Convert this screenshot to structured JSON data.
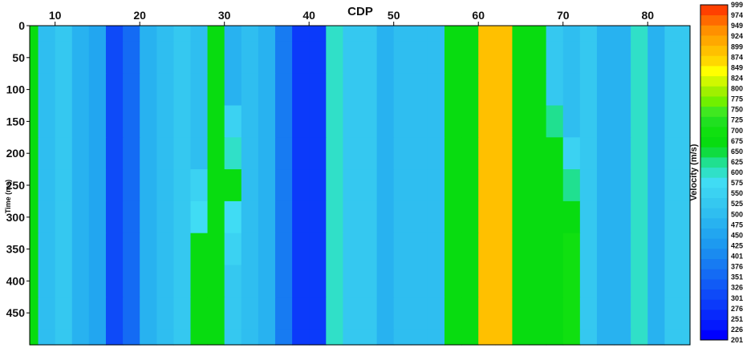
{
  "chart_data": {
    "type": "heatmap",
    "title": "",
    "xlabel": "CDP",
    "ylabel": "Time (ms)",
    "colorbar_label": "Velocity (m/s)",
    "xlim": [
      7,
      85
    ],
    "ylim": [
      0,
      500
    ],
    "y_inverted": true,
    "x_ticks": [
      10,
      20,
      30,
      40,
      50,
      60,
      70,
      80
    ],
    "y_ticks": [
      0,
      50,
      100,
      150,
      200,
      250,
      300,
      350,
      400,
      450
    ],
    "colorbar_levels": [
      201,
      226,
      251,
      276,
      301,
      326,
      351,
      376,
      401,
      425,
      450,
      475,
      500,
      525,
      550,
      575,
      600,
      625,
      650,
      675,
      700,
      725,
      750,
      775,
      800,
      824,
      849,
      874,
      899,
      924,
      949,
      974,
      999
    ],
    "colorbar_colors": [
      "#0000ff",
      "#0419fd",
      "#0829fb",
      "#0b3afa",
      "#0e4af8",
      "#115bf6",
      "#146bf4",
      "#177bf2",
      "#1a8bf0",
      "#1d9af0",
      "#22a6f0",
      "#28b2f0",
      "#2fbef0",
      "#35c8f0",
      "#3bd2f2",
      "#40dcf4",
      "#30e0c8",
      "#20e090",
      "#10dc40",
      "#08dc10",
      "#10e010",
      "#20e020",
      "#40e820",
      "#70f000",
      "#a0f000",
      "#d0f800",
      "#ffff00",
      "#ffd800",
      "#ffc000",
      "#ffa800",
      "#ff9000",
      "#ff6a00",
      "#ff4000"
    ],
    "x": [
      7,
      9,
      11,
      13,
      15,
      17,
      19,
      21,
      23,
      25,
      27,
      29,
      31,
      33,
      35,
      37,
      39,
      41,
      43,
      45,
      47,
      49,
      51,
      53,
      55,
      57,
      59,
      61,
      63,
      65,
      67,
      69,
      71,
      73,
      75,
      77,
      79,
      81,
      83,
      85
    ],
    "y": [
      0,
      50,
      100,
      150,
      200,
      250,
      300,
      350,
      400,
      450,
      500
    ],
    "values": [
      [
        700,
        525,
        530,
        500,
        470,
        310,
        360,
        500,
        520,
        530,
        520,
        700,
        500,
        510,
        480,
        380,
        300,
        300,
        620,
        540,
        530,
        500,
        510,
        520,
        520,
        700,
        700,
        900,
        900,
        700,
        680,
        530,
        520,
        530,
        500,
        480,
        620,
        500,
        530,
        530
      ],
      [
        700,
        525,
        530,
        500,
        470,
        310,
        360,
        500,
        520,
        530,
        520,
        700,
        500,
        510,
        480,
        380,
        300,
        300,
        620,
        540,
        530,
        500,
        510,
        520,
        520,
        700,
        700,
        900,
        900,
        700,
        680,
        530,
        520,
        530,
        500,
        480,
        620,
        500,
        530,
        530
      ],
      [
        700,
        525,
        530,
        500,
        470,
        310,
        360,
        500,
        520,
        530,
        520,
        700,
        500,
        510,
        480,
        380,
        300,
        300,
        620,
        540,
        530,
        500,
        510,
        520,
        520,
        700,
        700,
        900,
        900,
        700,
        680,
        530,
        520,
        530,
        500,
        480,
        620,
        500,
        530,
        530
      ],
      [
        700,
        525,
        530,
        500,
        470,
        310,
        360,
        500,
        520,
        530,
        520,
        700,
        560,
        510,
        480,
        380,
        300,
        300,
        620,
        540,
        530,
        500,
        510,
        520,
        520,
        700,
        700,
        900,
        900,
        700,
        680,
        630,
        520,
        530,
        500,
        480,
        620,
        500,
        530,
        530
      ],
      [
        700,
        525,
        530,
        500,
        470,
        310,
        360,
        500,
        520,
        530,
        520,
        700,
        620,
        510,
        480,
        380,
        300,
        300,
        620,
        540,
        530,
        500,
        510,
        520,
        520,
        700,
        700,
        900,
        900,
        700,
        680,
        700,
        570,
        530,
        500,
        480,
        620,
        500,
        530,
        530
      ],
      [
        700,
        525,
        530,
        500,
        470,
        310,
        360,
        500,
        520,
        530,
        560,
        700,
        680,
        520,
        480,
        380,
        300,
        300,
        620,
        540,
        530,
        500,
        510,
        520,
        520,
        700,
        700,
        900,
        900,
        700,
        680,
        700,
        650,
        530,
        500,
        480,
        620,
        500,
        530,
        530
      ],
      [
        700,
        525,
        530,
        500,
        470,
        310,
        360,
        500,
        520,
        530,
        600,
        700,
        600,
        510,
        480,
        380,
        300,
        300,
        620,
        540,
        530,
        500,
        510,
        520,
        520,
        700,
        700,
        900,
        900,
        700,
        680,
        700,
        700,
        530,
        500,
        480,
        620,
        500,
        530,
        530
      ],
      [
        700,
        525,
        530,
        500,
        470,
        310,
        360,
        500,
        520,
        530,
        680,
        700,
        560,
        510,
        480,
        380,
        300,
        300,
        620,
        540,
        530,
        500,
        510,
        520,
        520,
        700,
        700,
        900,
        900,
        700,
        680,
        700,
        720,
        530,
        500,
        480,
        620,
        500,
        530,
        530
      ],
      [
        700,
        525,
        530,
        500,
        470,
        310,
        360,
        500,
        520,
        530,
        700,
        700,
        540,
        510,
        480,
        380,
        300,
        300,
        620,
        540,
        530,
        500,
        510,
        520,
        520,
        700,
        700,
        900,
        900,
        700,
        680,
        700,
        720,
        530,
        500,
        480,
        620,
        500,
        530,
        530
      ],
      [
        700,
        525,
        530,
        500,
        470,
        310,
        360,
        500,
        520,
        530,
        700,
        700,
        540,
        510,
        480,
        380,
        300,
        300,
        620,
        540,
        530,
        500,
        510,
        520,
        520,
        700,
        700,
        900,
        900,
        700,
        680,
        700,
        720,
        530,
        500,
        480,
        620,
        500,
        530,
        530
      ],
      [
        700,
        525,
        530,
        500,
        470,
        310,
        360,
        500,
        520,
        530,
        700,
        700,
        540,
        510,
        480,
        380,
        300,
        300,
        620,
        540,
        530,
        500,
        510,
        520,
        520,
        700,
        700,
        900,
        900,
        700,
        680,
        700,
        720,
        530,
        500,
        480,
        620,
        500,
        530,
        530
      ]
    ]
  }
}
